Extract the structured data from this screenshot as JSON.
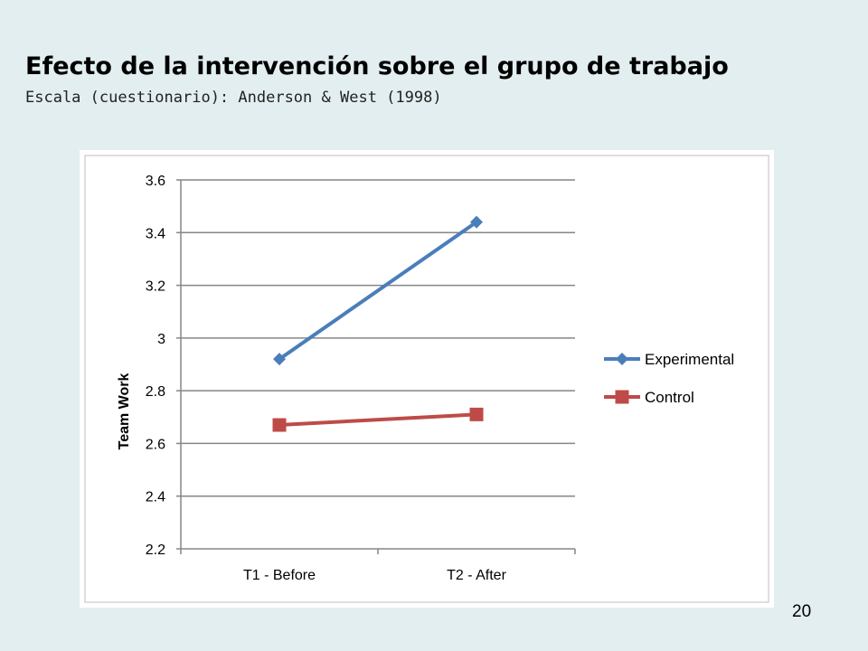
{
  "slide": {
    "title": "Efecto de la intervención sobre el grupo de trabajo",
    "subtitle": "Escala (cuestionario): Anderson & West (1998)",
    "page_number": "20"
  },
  "chart_data": {
    "type": "line",
    "title": "",
    "xlabel": "",
    "ylabel": "Team Work",
    "categories": [
      "T1 - Before",
      "T2 - After"
    ],
    "ylim": [
      2.2,
      3.6
    ],
    "yticks": [
      "2.2",
      "2.4",
      "2.6",
      "2.8",
      "3",
      "3.2",
      "3.4",
      "3.6"
    ],
    "grid": true,
    "legend_position": "right",
    "series": [
      {
        "name": "Experimental",
        "values": [
          2.92,
          3.44
        ],
        "color": "#4a7ebb",
        "marker": "diamond"
      },
      {
        "name": "Control",
        "values": [
          2.67,
          2.71
        ],
        "color": "#be4b48",
        "marker": "square"
      }
    ]
  }
}
